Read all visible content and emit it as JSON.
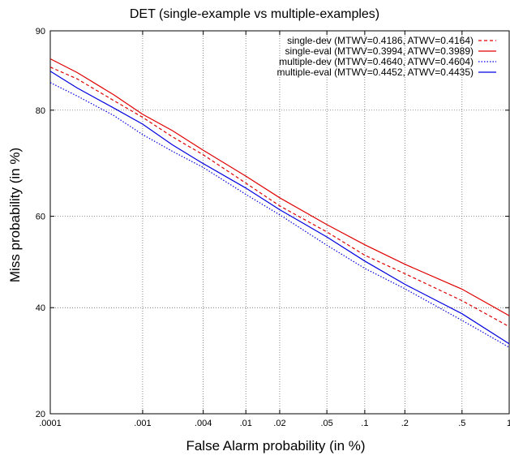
{
  "chart_data": {
    "type": "line",
    "title": "DET (single-example vs multiple-examples)",
    "xlabel": "False Alarm probability (in %)",
    "ylabel": "Miss probability (in %)",
    "x_scale": "normal-deviate",
    "y_scale": "normal-deviate",
    "xlim": [
      0.0001,
      1
    ],
    "ylim": [
      20,
      90
    ],
    "x_ticks": [
      {
        "value": 0.0001,
        "label": ".0001"
      },
      {
        "value": 0.001,
        "label": ".001"
      },
      {
        "value": 0.004,
        "label": ".004"
      },
      {
        "value": 0.01,
        "label": ".01"
      },
      {
        "value": 0.02,
        "label": ".02"
      },
      {
        "value": 0.05,
        "label": ".05"
      },
      {
        "value": 0.1,
        "label": ".1"
      },
      {
        "value": 0.2,
        "label": ".2"
      },
      {
        "value": 0.5,
        "label": ".5"
      },
      {
        "value": 1,
        "label": "1"
      }
    ],
    "y_ticks": [
      {
        "value": 20,
        "label": "20"
      },
      {
        "value": 40,
        "label": "40"
      },
      {
        "value": 60,
        "label": "60"
      },
      {
        "value": 80,
        "label": "80"
      },
      {
        "value": 90,
        "label": "90"
      }
    ],
    "grid": true,
    "legend_position": "top-right",
    "series": [
      {
        "name": "single-dev (MTWV=0.4186, ATWV=0.4164)",
        "color": "#e00000",
        "dash": "dashed",
        "x": [
          0.0001,
          0.0002,
          0.0005,
          0.001,
          0.002,
          0.004,
          0.01,
          0.02,
          0.05,
          0.1,
          0.2,
          0.5,
          1
        ],
        "y": [
          86,
          84.5,
          81.6,
          78.8,
          75.7,
          72.2,
          66.9,
          62.4,
          56.5,
          51.6,
          47.2,
          41.5,
          36
        ]
      },
      {
        "name": "single-eval (MTWV=0.3994, ATWV=0.3989)",
        "color": "#e00000",
        "dash": "solid",
        "x": [
          0.0001,
          0.0002,
          0.0005,
          0.001,
          0.002,
          0.004,
          0.01,
          0.02,
          0.05,
          0.1,
          0.2,
          0.5,
          1
        ],
        "y": [
          87,
          85.2,
          82.3,
          79.5,
          76.6,
          73.3,
          68.1,
          63.9,
          58.4,
          53.7,
          49.6,
          43.8,
          38.3
        ]
      },
      {
        "name": "multiple-dev (MTWV=0.4640, ATWV=0.4604)",
        "color": "#0000e0",
        "dash": "dotted",
        "x": [
          0.0001,
          0.0002,
          0.0005,
          0.001,
          0.002,
          0.004,
          0.01,
          0.02,
          0.05,
          0.1,
          0.2,
          0.5,
          1
        ],
        "y": [
          84,
          82.2,
          79,
          76,
          73.2,
          69.9,
          64.7,
          60.1,
          53.7,
          48.8,
          44,
          37.4,
          31.8
        ]
      },
      {
        "name": "multiple-eval (MTWV=0.4452, ATWV=0.4435)",
        "color": "#0000e0",
        "dash": "solid",
        "x": [
          0.0001,
          0.0002,
          0.0005,
          0.001,
          0.002,
          0.004,
          0.01,
          0.02,
          0.05,
          0.1,
          0.2,
          0.5,
          1
        ],
        "y": [
          85.5,
          83.2,
          80.4,
          77.6,
          74.2,
          70.9,
          65.8,
          61.5,
          55.3,
          50.2,
          45.3,
          38.6,
          32.5
        ]
      }
    ]
  }
}
